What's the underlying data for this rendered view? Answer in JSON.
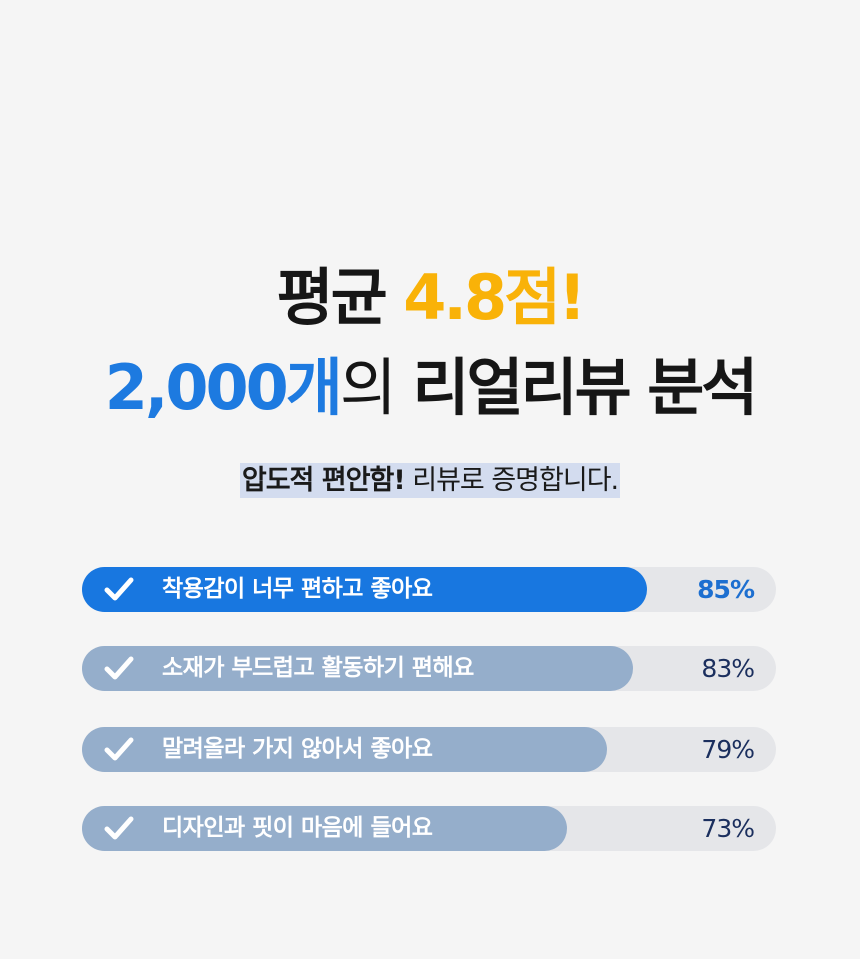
{
  "headline": {
    "line1_prefix": "평균",
    "line1_highlight": "4.8점!",
    "line2_highlight": "2,000개",
    "line2_particle": "의",
    "line2_suffix": "리얼리뷰 분석"
  },
  "subheading": {
    "bold": "압도적 편안함!",
    "regular": "리뷰로 증명합니다."
  },
  "colors": {
    "accent_blue": "#1877e0",
    "accent_yellow": "#f9b208",
    "inactive_bar": "#95aecb",
    "track": "#e5e6e9"
  },
  "reviews": [
    {
      "label": "착용감이 너무 편하고 좋아요",
      "percent_text": "85%",
      "value": 85,
      "highlighted": true,
      "icon": "check-icon"
    },
    {
      "label": "소재가 부드럽고 활동하기 편해요",
      "percent_text": "83%",
      "value": 83,
      "highlighted": false,
      "icon": "check-icon"
    },
    {
      "label": "말려올라 가지 않아서 좋아요",
      "percent_text": "79%",
      "value": 79,
      "highlighted": false,
      "icon": "check-icon"
    },
    {
      "label": "디자인과 핏이 마음에 들어요",
      "percent_text": "73%",
      "value": 73,
      "highlighted": false,
      "icon": "check-icon"
    }
  ]
}
